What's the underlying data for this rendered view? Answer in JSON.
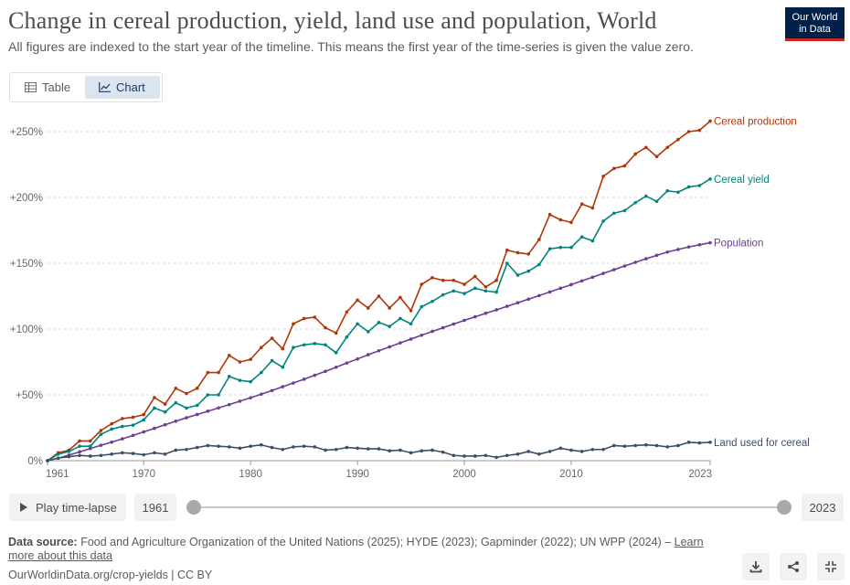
{
  "header": {
    "title": "Change in cereal production, yield, land use and population, World",
    "subtitle": "All figures are indexed to the start year of the timeline. This means the first year of the time-series is given the value zero.",
    "logo_line1": "Our World",
    "logo_line2": "in Data"
  },
  "tabs": [
    {
      "label": "Table",
      "icon": "table-icon",
      "selected": false
    },
    {
      "label": "Chart",
      "icon": "line-chart-icon",
      "selected": true
    }
  ],
  "chart_data": {
    "type": "line",
    "x": [
      1961,
      1962,
      1963,
      1964,
      1965,
      1966,
      1967,
      1968,
      1969,
      1970,
      1971,
      1972,
      1973,
      1974,
      1975,
      1976,
      1977,
      1978,
      1979,
      1980,
      1981,
      1982,
      1983,
      1984,
      1985,
      1986,
      1987,
      1988,
      1989,
      1990,
      1991,
      1992,
      1993,
      1994,
      1995,
      1996,
      1997,
      1998,
      1999,
      2000,
      2001,
      2002,
      2003,
      2004,
      2005,
      2006,
      2007,
      2008,
      2009,
      2010,
      2011,
      2012,
      2013,
      2014,
      2015,
      2016,
      2017,
      2018,
      2019,
      2020,
      2021,
      2022,
      2023
    ],
    "yticks": [
      "0%",
      "+50%",
      "+100%",
      "+150%",
      "+200%",
      "+250%"
    ],
    "ytick_values": [
      0,
      50,
      100,
      150,
      200,
      250
    ],
    "xticks": [
      1961,
      1970,
      1980,
      1990,
      2000,
      2010,
      2023
    ],
    "ylim": [
      0,
      250
    ],
    "xlim": [
      1961,
      2023
    ],
    "grid": "horizontal dashed",
    "legend": "line-end labels",
    "series": [
      {
        "name": "Cereal production",
        "color": "#b13507",
        "values": [
          0,
          6,
          8,
          15,
          15,
          23,
          28,
          32,
          33,
          35,
          48,
          43,
          55,
          51,
          55,
          67,
          67,
          80,
          75,
          77,
          86,
          93,
          85,
          104,
          108,
          109,
          101,
          97,
          113,
          122,
          116,
          125,
          116,
          124,
          114,
          134,
          139,
          137,
          137,
          134,
          140,
          132,
          137,
          160,
          158,
          157,
          168,
          187,
          183,
          181,
          195,
          192,
          216,
          222,
          224,
          233,
          238,
          231,
          238,
          244,
          250,
          251,
          258
        ]
      },
      {
        "name": "Cereal yield",
        "color": "#00847e",
        "values": [
          0,
          5,
          7,
          11,
          11,
          20,
          24,
          26,
          27,
          31,
          40,
          37,
          44,
          40,
          42,
          50,
          50,
          64,
          61,
          60,
          67,
          76,
          71,
          86,
          88,
          89,
          88,
          82,
          94,
          104,
          98,
          105,
          102,
          108,
          104,
          117,
          121,
          126,
          129,
          127,
          131,
          129,
          128,
          150,
          141,
          144,
          149,
          161,
          162,
          162,
          170,
          167,
          182,
          188,
          190,
          196,
          201,
          197,
          205,
          204,
          208,
          209,
          214
        ]
      },
      {
        "name": "Population",
        "color": "#6d3e91",
        "values": [
          0,
          1.9,
          4.2,
          6.7,
          9.2,
          11.7,
          14.1,
          16.6,
          19.2,
          21.9,
          24.6,
          27.3,
          30,
          32.6,
          35.1,
          37.6,
          40.1,
          42.6,
          45.2,
          47.8,
          50.5,
          53.3,
          56.2,
          59,
          61.9,
          64.9,
          67.9,
          71,
          74.2,
          77.3,
          80.5,
          83.5,
          86.5,
          89.5,
          92.4,
          95.3,
          98.2,
          101,
          103.8,
          106.6,
          109.3,
          112,
          114.6,
          117.3,
          120,
          122.7,
          125.4,
          128.2,
          131,
          133.8,
          136.6,
          139.4,
          142.3,
          145.1,
          147.9,
          150.7,
          153.4,
          156,
          158.5,
          160.5,
          162.4,
          164,
          165.6
        ]
      },
      {
        "name": "Land used for cereal",
        "color": "#3c4e66",
        "values": [
          0,
          2,
          3,
          4,
          3.5,
          4,
          5,
          6,
          5.5,
          4.5,
          6,
          5,
          8,
          8.5,
          10,
          11.5,
          11,
          10.5,
          9.5,
          11,
          12,
          10,
          8.5,
          10.5,
          11,
          10.5,
          8,
          8.5,
          10,
          9.5,
          9,
          9,
          7.5,
          8,
          6,
          7.5,
          8,
          6.5,
          4,
          3.5,
          3.5,
          4,
          2.5,
          4,
          5,
          7,
          5,
          7,
          9.5,
          8,
          7,
          8.5,
          8.5,
          11.5,
          11,
          11.5,
          12,
          11.5,
          10.5,
          11.5,
          14,
          13.5,
          14
        ]
      }
    ]
  },
  "timeline": {
    "play_label": "Play time-lapse",
    "start_year": "1961",
    "end_year": "2023",
    "range": [
      1961,
      2023
    ]
  },
  "footer": {
    "source_label": "Data source:",
    "source_text": "Food and Agriculture Organization of the United Nations (2025); HYDE (2023); Gapminder (2022); UN WPP (2024) –",
    "learn_more": "Learn more about this data",
    "url_line": "OurWorldinData.org/crop-yields | CC BY"
  },
  "buttons": {
    "download_icon": "download-icon",
    "share_icon": "share-icon",
    "fullscreen_icon": "fullscreen-icon"
  }
}
